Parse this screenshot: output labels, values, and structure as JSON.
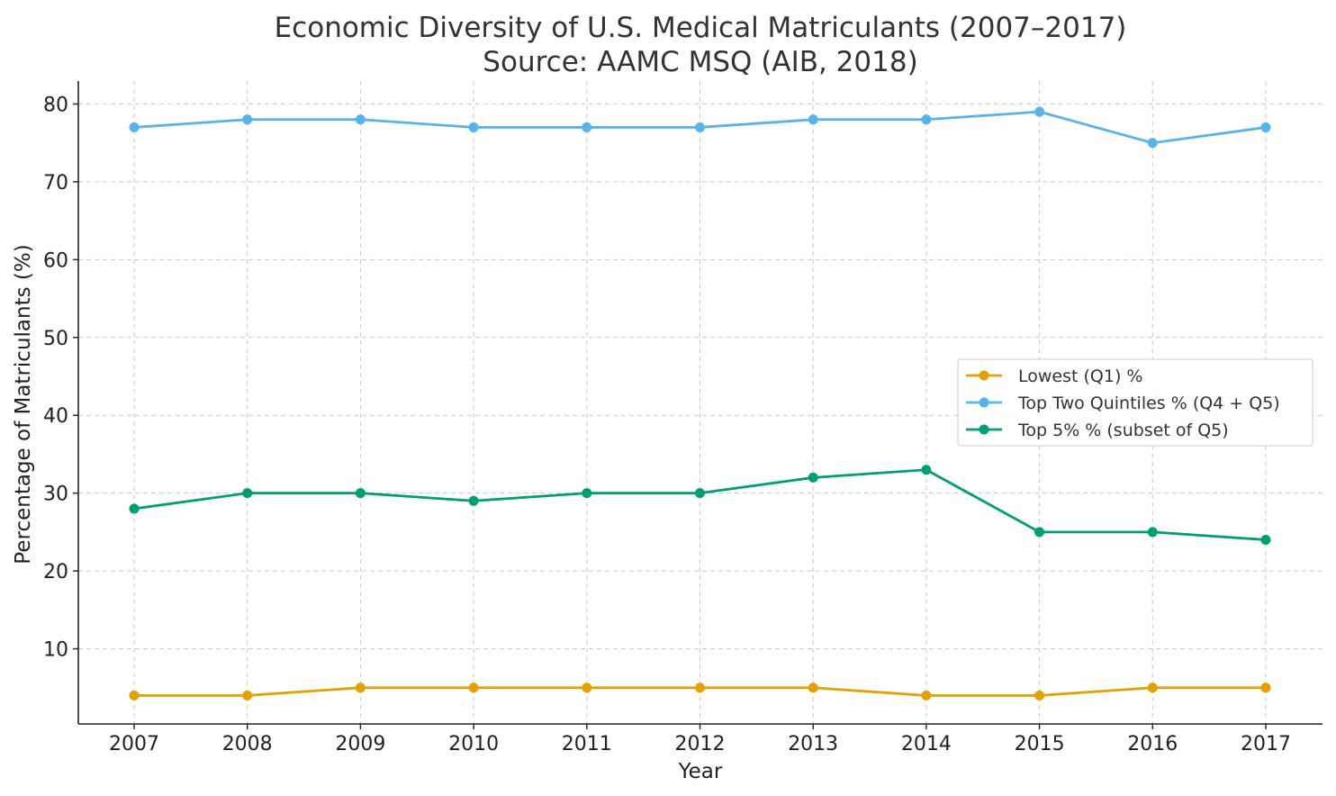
{
  "chart_data": {
    "type": "line",
    "title_line1": "Economic Diversity of U.S. Medical Matriculants (2007–2017)",
    "title_line2": "Source: AAMC MSQ (AIB, 2018)",
    "xlabel": "Year",
    "ylabel": "Percentage of Matriculants (%)",
    "x": [
      2007,
      2008,
      2009,
      2010,
      2011,
      2012,
      2013,
      2014,
      2015,
      2016,
      2017
    ],
    "ylim": [
      0,
      83
    ],
    "yticks": [
      10,
      20,
      30,
      40,
      50,
      60,
      70,
      80
    ],
    "grid": true,
    "legend_position": "center-right",
    "series": [
      {
        "name": "Lowest (Q1) %",
        "color": "#E69F00",
        "values": [
          4,
          4,
          5,
          5,
          5,
          5,
          5,
          4,
          4,
          5,
          5
        ]
      },
      {
        "name": "Top Two Quintiles % (Q4 + Q5)",
        "color": "#56B4E9",
        "values": [
          77,
          78,
          78,
          77,
          77,
          77,
          78,
          78,
          79,
          75,
          77
        ]
      },
      {
        "name": "Top 5% % (subset of Q5)",
        "color": "#009E73",
        "values": [
          28,
          30,
          30,
          29,
          30,
          30,
          32,
          33,
          25,
          25,
          24
        ]
      }
    ]
  }
}
